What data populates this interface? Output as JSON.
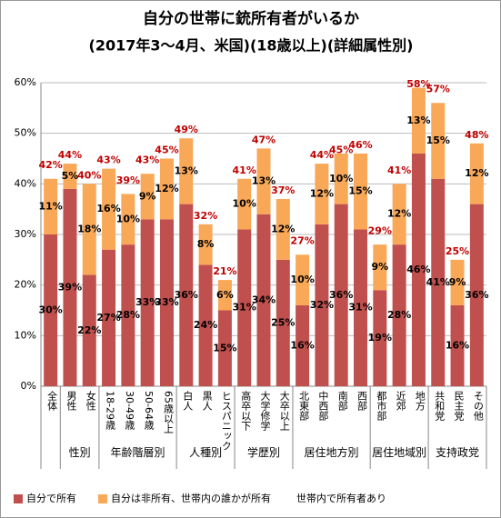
{
  "chart_data": {
    "type": "stacked_bar",
    "title": "自分の世帯に銃所有者がいるか",
    "subtitle": "(2017年3～4月、米国)(18歳以上)(詳細属性別)",
    "categories": [
      "全体",
      "男性",
      "女性",
      "18-29歳",
      "30-49歳",
      "50-64歳",
      "65歳以上",
      "白人",
      "黒人",
      "ヒスパニック",
      "高卒以下",
      "大学修学",
      "大卒以上",
      "北東部",
      "中西部",
      "南部",
      "西部",
      "都市部",
      "近郊",
      "地方",
      "共和党",
      "民主党",
      "その他"
    ],
    "groups": [
      {
        "label": null,
        "size": 1
      },
      {
        "label": "性別",
        "size": 2
      },
      {
        "label": "年齢階層別",
        "size": 4
      },
      {
        "label": "人種別",
        "size": 3
      },
      {
        "label": "学歴別",
        "size": 3
      },
      {
        "label": "居住地方別",
        "size": 4
      },
      {
        "label": "居住地域別",
        "size": 3
      },
      {
        "label": "支持政党",
        "size": 3
      }
    ],
    "series": [
      {
        "name": "自分で所有",
        "color": "#c0504d",
        "values": [
          30,
          39,
          22,
          27,
          28,
          33,
          33,
          36,
          24,
          15,
          31,
          34,
          25,
          16,
          32,
          36,
          31,
          19,
          28,
          46,
          41,
          16,
          36
        ],
        "value_labels": [
          "30%",
          "39%",
          "22%",
          "27%",
          "28%",
          "33%",
          "33%",
          "36%",
          "24%",
          "15%",
          "31%",
          "34%",
          "25%",
          "16%",
          "32%",
          "36%",
          "31%",
          "19%",
          "28%",
          "46%",
          "41%",
          "16%",
          "36%"
        ]
      },
      {
        "name": "自分は非所有、世帯内の誰かが所有",
        "color": "#f9a857",
        "values": [
          11,
          5,
          18,
          16,
          10,
          9,
          12,
          13,
          8,
          6,
          10,
          13,
          12,
          10,
          12,
          10,
          15,
          9,
          12,
          13,
          15,
          9,
          12
        ],
        "value_labels": [
          "11%",
          "5%",
          "18%",
          "16%",
          "10%",
          "9%",
          "12%",
          "13%",
          "8%",
          "6%",
          "10%",
          "13%",
          "12%",
          "10%",
          "12%",
          "10%",
          "15%",
          "9%",
          "12%",
          "13%",
          "15%",
          "9%",
          "12%"
        ]
      }
    ],
    "totals": {
      "name": "世帯内で所有者あり",
      "color": "#c00000",
      "values": [
        42,
        44,
        40,
        43,
        39,
        43,
        45,
        49,
        32,
        21,
        41,
        47,
        37,
        27,
        44,
        45,
        46,
        29,
        41,
        58,
        57,
        25,
        48
      ],
      "value_labels": [
        "42%",
        "44%",
        "40%",
        "43%",
        "39%",
        "43%",
        "45%",
        "49%",
        "32%",
        "21%",
        "41%",
        "47%",
        "37%",
        "27%",
        "44%",
        "45%",
        "46%",
        "29%",
        "41%",
        "58%",
        "57%",
        "25%",
        "48%"
      ]
    },
    "ylim": [
      0,
      60
    ],
    "yticks": [
      {
        "value": 0,
        "label": "0%"
      },
      {
        "value": 10,
        "label": "10%"
      },
      {
        "value": 20,
        "label": "20%"
      },
      {
        "value": 30,
        "label": "30%"
      },
      {
        "value": 40,
        "label": "40%"
      },
      {
        "value": 50,
        "label": "50%"
      },
      {
        "value": 60,
        "label": "60%"
      }
    ],
    "grid": true
  }
}
